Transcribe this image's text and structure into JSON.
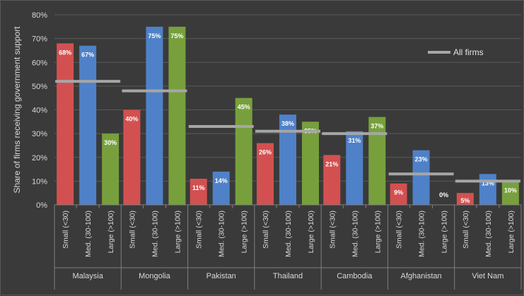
{
  "chart_data": {
    "type": "bar",
    "title": "",
    "ylabel": "Share of firms receiving government support",
    "ylim": [
      0,
      80
    ],
    "yticks": [
      "0%",
      "10%",
      "20%",
      "30%",
      "40%",
      "50%",
      "60%",
      "70%",
      "80%"
    ],
    "grid": true,
    "legend": {
      "position": "top-right",
      "entries": [
        "All firms"
      ]
    },
    "sub_categories": [
      "Small (<30)",
      "Med. (30-100)",
      "Large (>100)"
    ],
    "colors": {
      "small": "#d35050",
      "medium": "#4f81c8",
      "large": "#77a03d",
      "all_firms": "#a6a6a6"
    },
    "groups": [
      {
        "country": "Malaysia",
        "values": [
          68,
          67,
          30
        ],
        "labels": [
          "68%",
          "67%",
          "30%"
        ],
        "all_firms": 52
      },
      {
        "country": "Mongolia",
        "values": [
          40,
          75,
          75
        ],
        "labels": [
          "40%",
          "75%",
          "75%"
        ],
        "all_firms": 48
      },
      {
        "country": "Pakistan",
        "values": [
          11,
          14,
          45
        ],
        "labels": [
          "11%",
          "14%",
          "45%"
        ],
        "all_firms": 33
      },
      {
        "country": "Thailand",
        "values": [
          26,
          38,
          35
        ],
        "labels": [
          "26%",
          "38%",
          "35%"
        ],
        "all_firms": 31
      },
      {
        "country": "Cambodia",
        "values": [
          21,
          31,
          37
        ],
        "labels": [
          "21%",
          "31%",
          "37%"
        ],
        "all_firms": 30
      },
      {
        "country": "Afghanistan",
        "values": [
          9,
          23,
          0
        ],
        "labels": [
          "9%",
          "23%",
          "0%"
        ],
        "all_firms": 13
      },
      {
        "country": "Viet Nam",
        "values": [
          5,
          13,
          10
        ],
        "labels": [
          "5%",
          "13%",
          "10%"
        ],
        "all_firms": 10
      }
    ]
  }
}
